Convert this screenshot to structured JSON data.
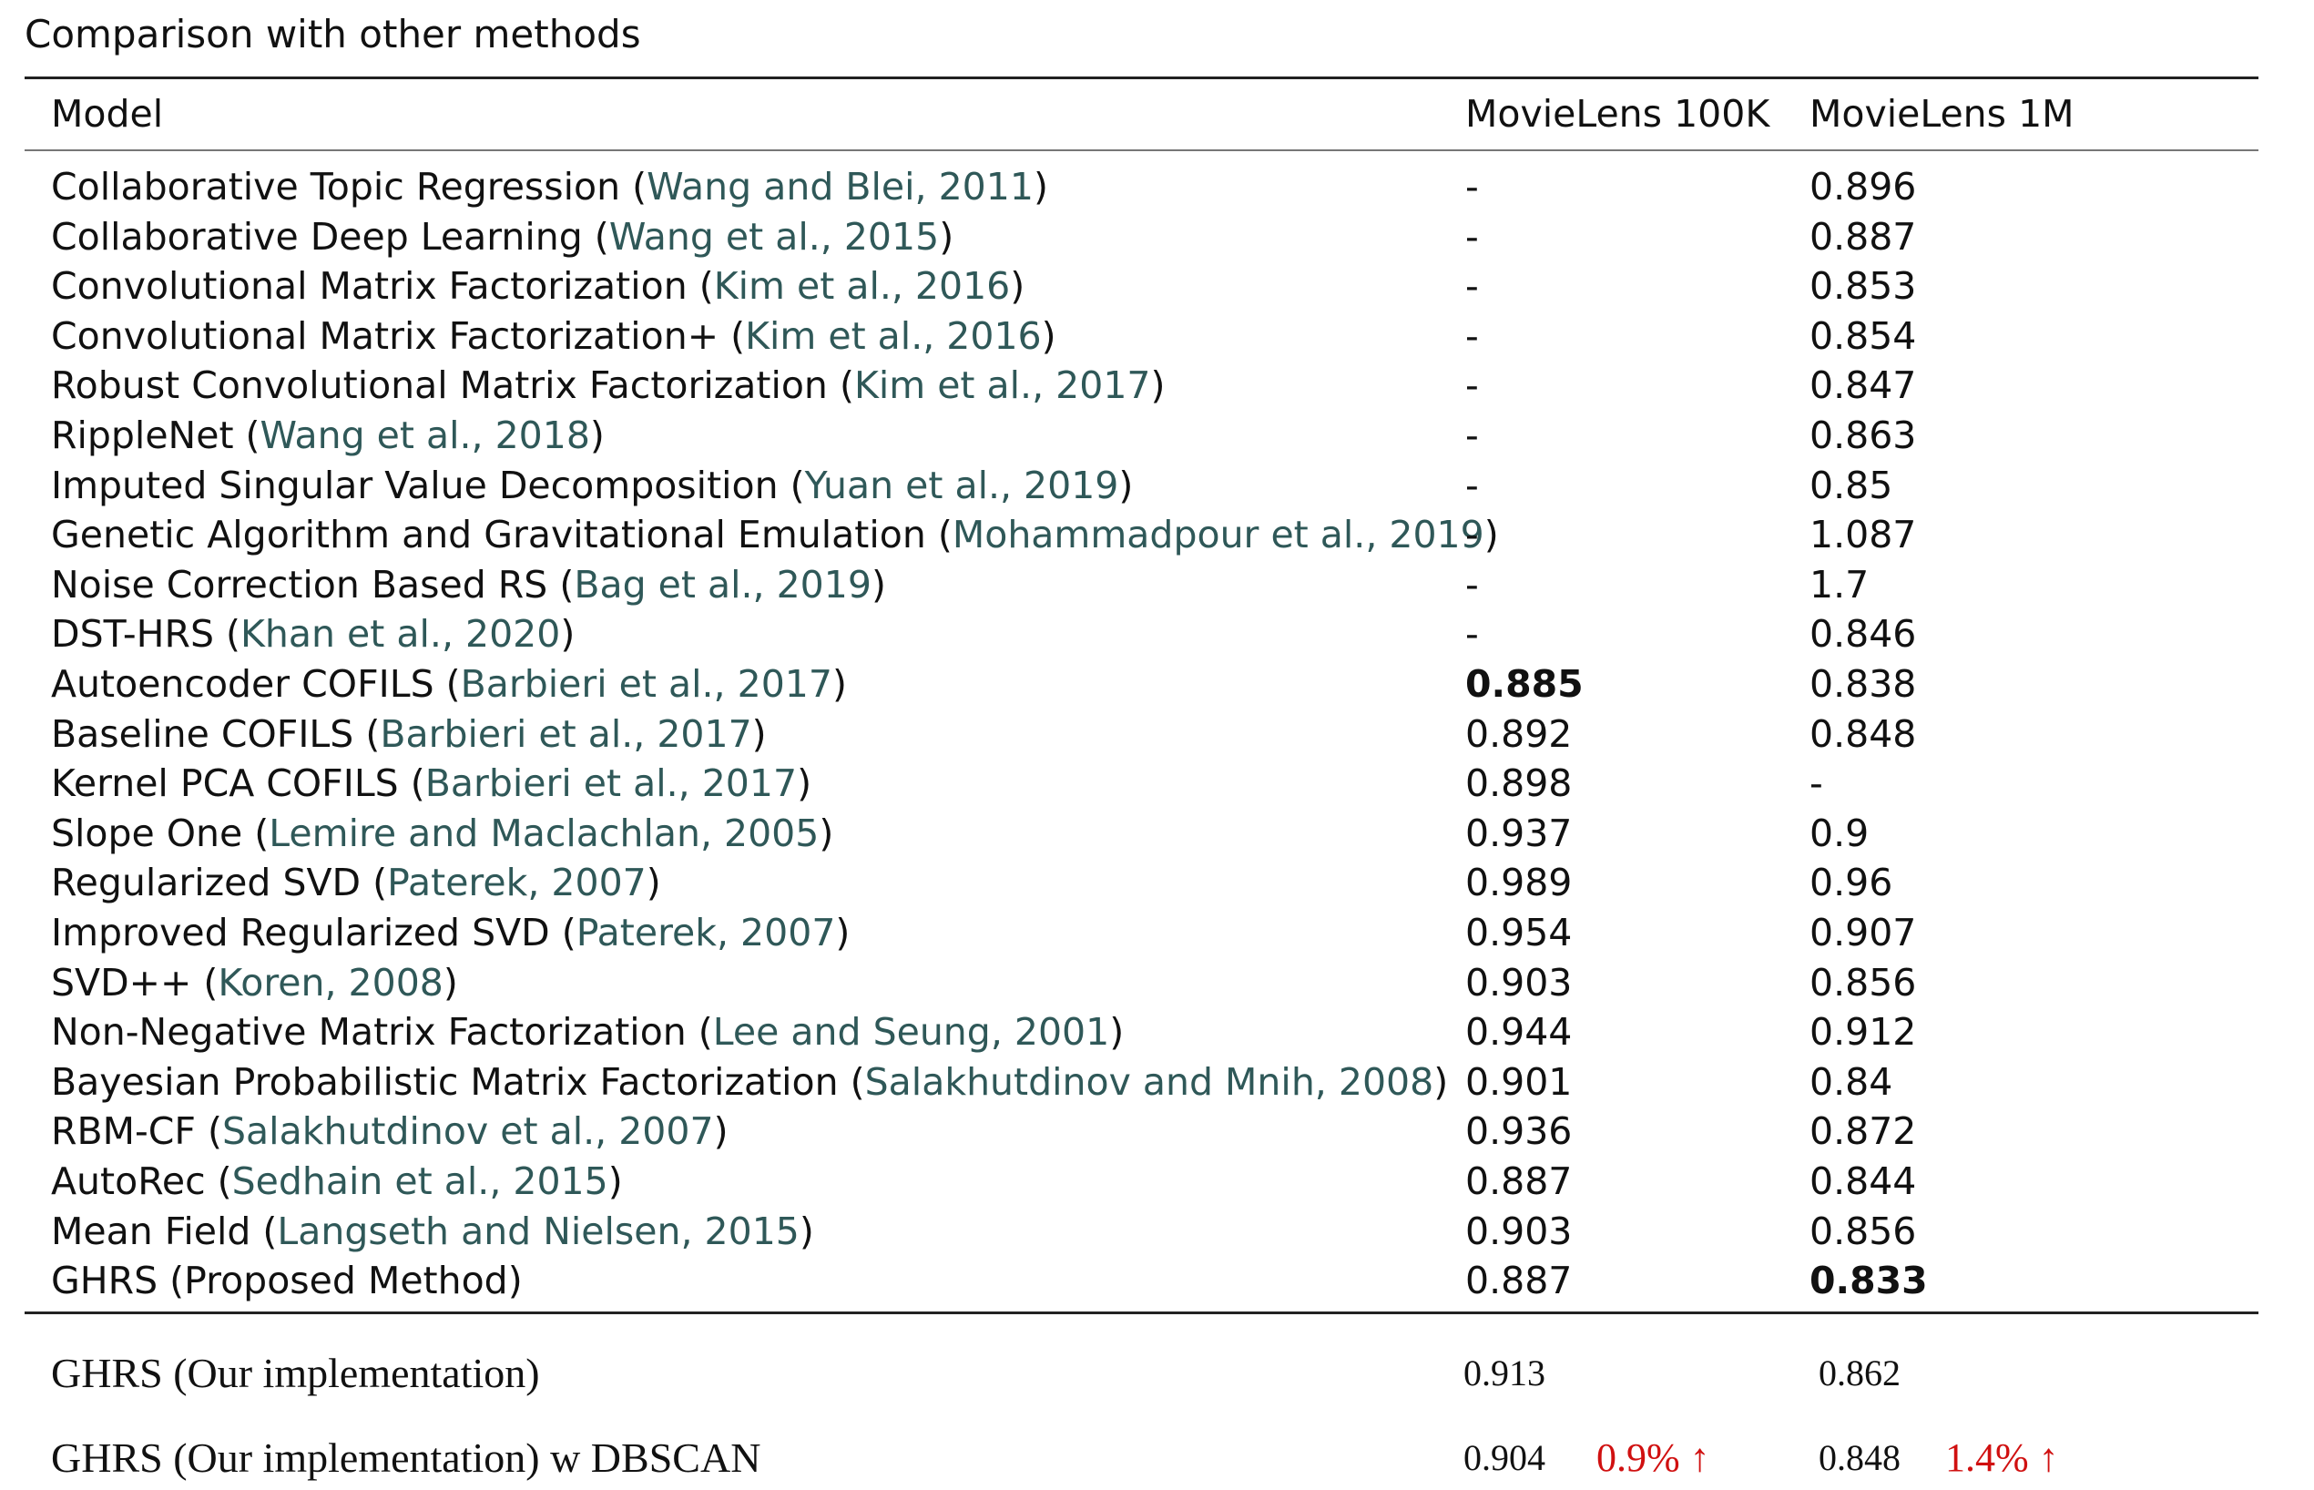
{
  "caption": "Comparison with other methods",
  "header": {
    "model": "Model",
    "ml100k": "MovieLens 100K",
    "ml1m": "MovieLens 1M"
  },
  "rows": [
    {
      "model": "Collaborative Topic Regression (",
      "cite": "Wang and Blei, 2011",
      "close": ")",
      "ml100k": "-",
      "ml1m": "0.896"
    },
    {
      "model": "Collaborative Deep Learning (",
      "cite": "Wang et al., 2015",
      "close": ")",
      "ml100k": "-",
      "ml1m": "0.887"
    },
    {
      "model": "Convolutional Matrix Factorization (",
      "cite": "Kim et al., 2016",
      "close": ")",
      "ml100k": "-",
      "ml1m": "0.853"
    },
    {
      "model": "Convolutional Matrix Factorization+ (",
      "cite": "Kim et al., 2016",
      "close": ")",
      "ml100k": "-",
      "ml1m": "0.854"
    },
    {
      "model": "Robust Convolutional Matrix Factorization (",
      "cite": "Kim et al., 2017",
      "close": ")",
      "ml100k": "-",
      "ml1m": "0.847"
    },
    {
      "model": "RippleNet (",
      "cite": "Wang et al., 2018",
      "close": ")",
      "ml100k": "-",
      "ml1m": "0.863"
    },
    {
      "model": "Imputed Singular Value Decomposition (",
      "cite": "Yuan et al., 2019",
      "close": ")",
      "ml100k": "-",
      "ml1m": "0.85"
    },
    {
      "model": "Genetic Algorithm and Gravitational Emulation (",
      "cite": "Mohammadpour et al., 2019",
      "close": ")",
      "ml100k": "-",
      "ml1m": "1.087"
    },
    {
      "model": "Noise Correction Based RS (",
      "cite": "Bag et al., 2019",
      "close": ")",
      "ml100k": "-",
      "ml1m": "1.7"
    },
    {
      "model": "DST-HRS (",
      "cite": "Khan et al., 2020",
      "close": ")",
      "ml100k": "-",
      "ml1m": "0.846"
    },
    {
      "model": "Autoencoder COFILS (",
      "cite": "Barbieri et al., 2017",
      "close": ")",
      "ml100k": "0.885",
      "ml1m": "0.838"
    },
    {
      "model": "Baseline COFILS (",
      "cite": "Barbieri et al., 2017",
      "close": ")",
      "ml100k": "0.892",
      "ml1m": "0.848"
    },
    {
      "model": "Kernel PCA COFILS (",
      "cite": "Barbieri et al., 2017",
      "close": ")",
      "ml100k": "0.898",
      "ml1m": "-"
    },
    {
      "model": "Slope One (",
      "cite": "Lemire and Maclachlan, 2005",
      "close": ")",
      "ml100k": "0.937",
      "ml1m": "0.9"
    },
    {
      "model": "Regularized SVD (",
      "cite": "Paterek, 2007",
      "close": ")",
      "ml100k": "0.989",
      "ml1m": "0.96"
    },
    {
      "model": "Improved Regularized SVD (",
      "cite": "Paterek, 2007",
      "close": ")",
      "ml100k": "0.954",
      "ml1m": "0.907"
    },
    {
      "model": "SVD++ (",
      "cite": "Koren, 2008",
      "close": ")",
      "ml100k": "0.903",
      "ml1m": "0.856"
    },
    {
      "model": "Non-Negative Matrix Factorization (",
      "cite": "Lee and Seung, 2001",
      "close": ")",
      "ml100k": "0.944",
      "ml1m": "0.912"
    },
    {
      "model": "Bayesian Probabilistic Matrix Factorization (",
      "cite": "Salakhutdinov and Mnih, 2008",
      "close": ")",
      "ml100k": "0.901",
      "ml1m": "0.84"
    },
    {
      "model": "RBM-CF (",
      "cite": "Salakhutdinov et al., 2007",
      "close": ")",
      "ml100k": "0.936",
      "ml1m": "0.872"
    },
    {
      "model": "AutoRec (",
      "cite": "Sedhain et al., 2015",
      "close": ")",
      "ml100k": "0.887",
      "ml1m": "0.844"
    },
    {
      "model": "Mean Field (",
      "cite": "Langseth and Nielsen, 2015",
      "close": ")",
      "ml100k": "0.903",
      "ml1m": "0.856"
    },
    {
      "model": "GHRS (Proposed Method)",
      "cite": "",
      "close": "",
      "ml100k": "0.887",
      "ml1m": "0.833"
    }
  ],
  "ours": [
    {
      "model": "GHRS (Our implementation)",
      "ml100k": "0.913",
      "ml1m": "0.862",
      "gain100k": "",
      "gain1m": ""
    },
    {
      "model": "GHRS (Our implementation) w DBSCAN",
      "ml100k": "0.904",
      "ml1m": "0.848",
      "gain100k": "0.9% ↑",
      "gain1m": "1.4% ↑"
    }
  ],
  "colors": {
    "citation": "#2f5858",
    "gain": "#d01010"
  }
}
